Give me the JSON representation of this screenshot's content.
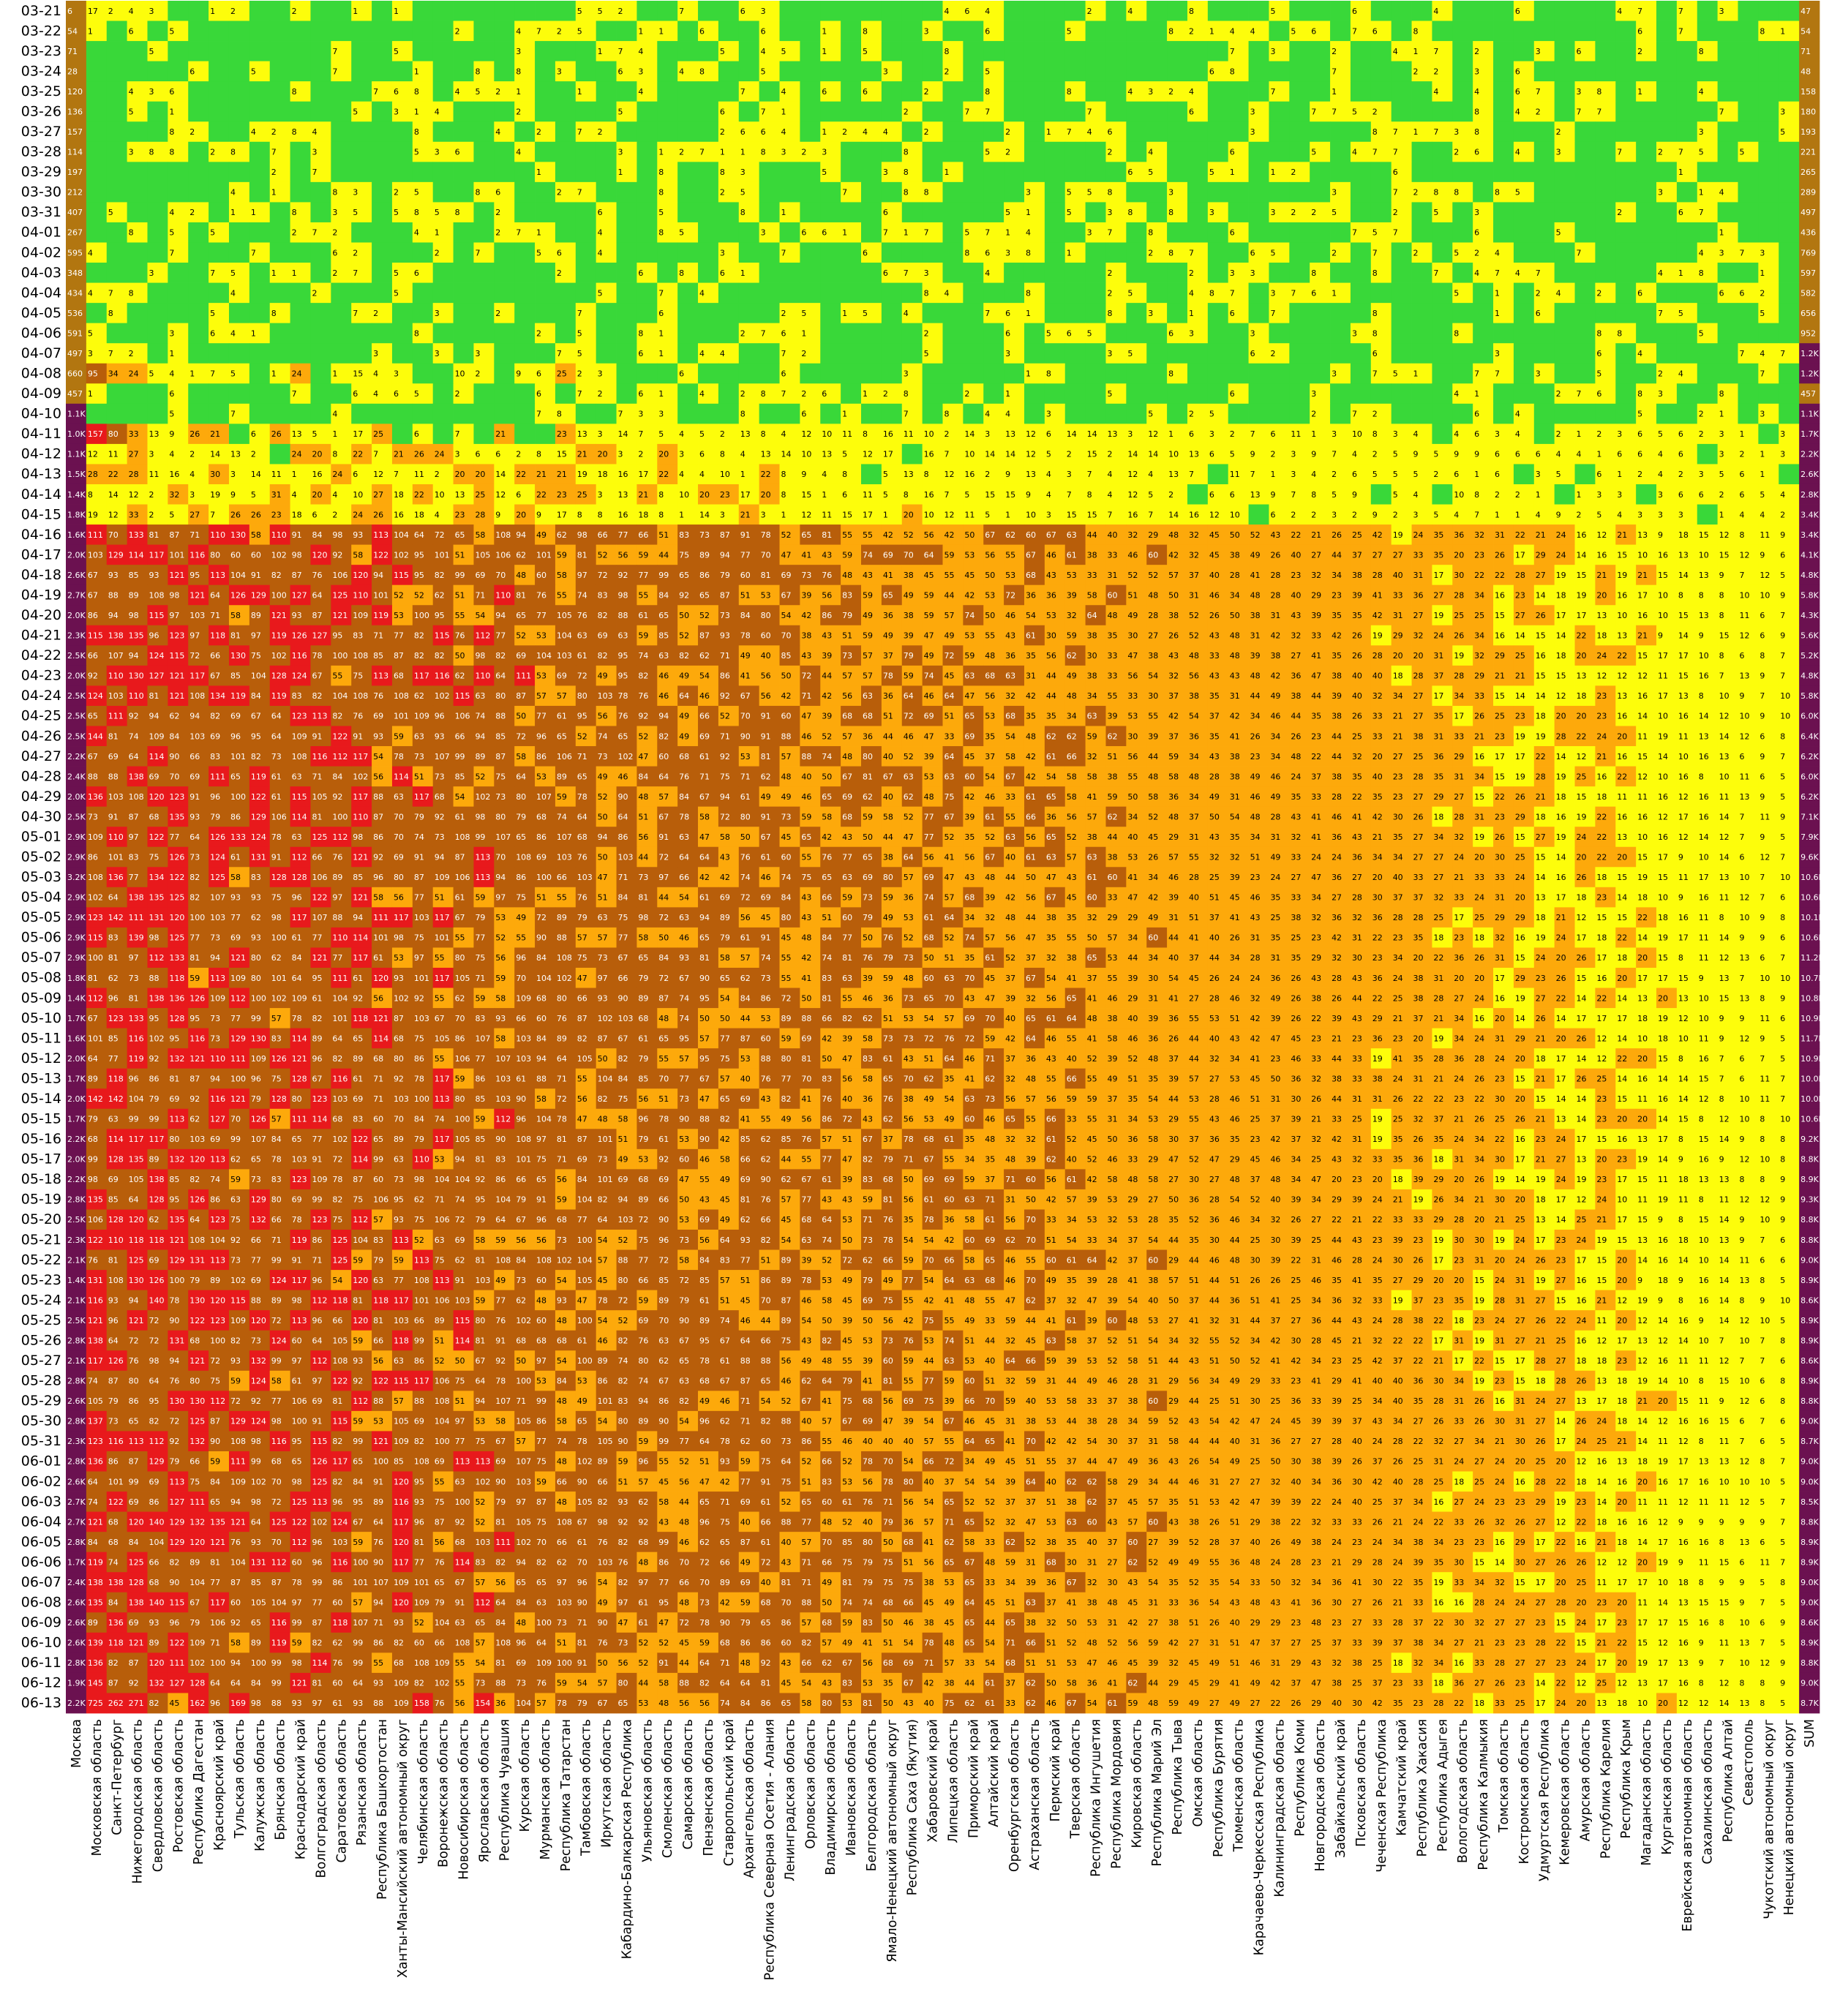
{
  "chart_data": {
    "type": "heatmap",
    "title": "",
    "xlabel": "",
    "ylabel": "",
    "color_scale": {
      "zero": "#39d839",
      "low": "#fdfd0b",
      "mid": "#fda90b",
      "high": "#b85e0a",
      "peak": "#e8191c",
      "sum_low": "#b27610",
      "sum_high": "#6b1150"
    },
    "rows": [
      "03-21",
      "03-22",
      "03-23",
      "03-24",
      "03-25",
      "03-26",
      "03-27",
      "03-28",
      "03-29",
      "03-30",
      "03-31",
      "04-01",
      "04-02",
      "04-03",
      "04-04",
      "04-05",
      "04-06",
      "04-07",
      "04-08",
      "04-09",
      "04-10",
      "04-11",
      "04-12",
      "04-13",
      "04-14",
      "04-15",
      "04-16",
      "04-17",
      "04-18",
      "04-19",
      "04-20",
      "04-21",
      "04-22",
      "04-23",
      "04-24",
      "04-25",
      "04-26",
      "04-27",
      "04-28",
      "04-29",
      "04-30",
      "05-01",
      "05-02",
      "05-03",
      "05-04",
      "05-05",
      "05-06",
      "05-07",
      "05-08",
      "05-09",
      "05-10",
      "05-11",
      "05-12",
      "05-13",
      "05-14",
      "05-15",
      "05-16",
      "05-17",
      "05-18",
      "05-19",
      "05-20",
      "05-21",
      "05-22",
      "05-23",
      "05-24",
      "05-25",
      "05-26",
      "05-27",
      "05-28",
      "05-29",
      "05-30",
      "05-31",
      "06-01",
      "06-02",
      "06-03",
      "06-04",
      "06-05",
      "06-06",
      "06-07",
      "06-08",
      "06-09",
      "06-10",
      "06-11",
      "06-12",
      "06-13"
    ],
    "columns": [
      "Москва",
      "Московская область",
      "Санкт-Петербург",
      "Нижегородская область",
      "Свердловская область",
      "Ростовская область",
      "Республика Дагестан",
      "Красноярский край",
      "Тульская область",
      "Калужская область",
      "Брянская область",
      "Краснодарский край",
      "Волгоградская область",
      "Саратовская область",
      "Рязанская область",
      "Республика Башкортостан",
      "Ханты-Мансийский автономный округ",
      "Челябинская область",
      "Воронежская область",
      "Новосибирская область",
      "Ярославская область",
      "Республика Чувашия",
      "Курская область",
      "Мурманская область",
      "Республика Татарстан",
      "Тамбовская область",
      "Иркутская область",
      "Кабардино-Балкарская Республика",
      "Ульяновская область",
      "Смоленская область",
      "Самарская область",
      "Пензенская область",
      "Ставропольский край",
      "Архангельская область",
      "Республика Северная Осетия - Алания",
      "Ленинградская область",
      "Орловская область",
      "Владимирская область",
      "Ивановская область",
      "Белгородская область",
      "Ямало-Ненецкий автономный округ",
      "Республика Саха (Якутия)",
      "Хабаровский край",
      "Липецкая область",
      "Приморский край",
      "Алтайский край",
      "Оренбургская область",
      "Астраханская область",
      "Пермский край",
      "Тверская область",
      "Республика Ингушетия",
      "Республика Мордовия",
      "Кировская область",
      "Республика Марий Эл",
      "Республика Тыва",
      "Омская область",
      "Республика Бурятия",
      "Тюменская область",
      "Карачаево-Черкесская Республика",
      "Калининградская область",
      "Республика Коми",
      "Новгородская область",
      "Забайкальский край",
      "Псковская область",
      "Чеченская Республика",
      "Камчатский край",
      "Республика Хакасия",
      "Республика Адыгея",
      "Вологодская область",
      "Республика Калмыкия",
      "Томская область",
      "Костромская область",
      "Удмуртская Республика",
      "Кемеровская область",
      "Амурская область",
      "Республика Карелия",
      "Республика Крым",
      "Магаданская область",
      "Курганская область",
      "Еврейская автономная область",
      "Сахалинская область",
      "Республика Алтай",
      "Севастополь",
      "Чукотский автономный округ",
      "Ненецкий автономный округ",
      "SUM"
    ],
    "sum_column": [
      "47",
      "54",
      "71",
      "48",
      "158",
      "180",
      "193",
      "221",
      "265",
      "289",
      "497",
      "436",
      "769",
      "597",
      "582",
      "656",
      "952",
      "1.2K",
      "1.2K",
      "457",
      "1.1K",
      "1.7K",
      "2.2K",
      "2.6K",
      "2.8K",
      "3.4K",
      "3.4K",
      "4.1K",
      "4.8K",
      "5.8K",
      "4.3K",
      "5.6K",
      "5.2K",
      "4.8K",
      "5.8K",
      "6.0K",
      "6.4K",
      "6.2K",
      "6.0K",
      "6.2K",
      "7.1K",
      "7.9K",
      "9.6K",
      "10.6K",
      "10.6K",
      "10.1K",
      "10.6K",
      "11.2K",
      "10.7K",
      "10.8K",
      "10.9K",
      "11.7K",
      "10.9K",
      "10.0K",
      "10.0K",
      "10.6K",
      "9.2K",
      "8.8K",
      "8.9K",
      "9.3K",
      "8.8K",
      "8.8K",
      "9.0K",
      "8.9K",
      "8.6K",
      "8.9K",
      "8.9K",
      "8.6K",
      "8.9K",
      "8.8K",
      "9.0K",
      "8.7K",
      "9.0K",
      "9.0K",
      "8.5K",
      "8.8K",
      "8.9K",
      "8.9K",
      "9.0K",
      "9.0K",
      "8.6K",
      "8.9K",
      "8.8K",
      "9.0K",
      "8.7K"
    ],
    "moscow_column": [
      "6",
      "54",
      "71",
      "28",
      "120",
      "136",
      "157",
      "114",
      "197",
      "212",
      "407",
      "267",
      "595",
      "348",
      "434",
      "536",
      "591",
      "497",
      "660",
      "457",
      "1.1K",
      "1.0K",
      "1.1K",
      "1.5K",
      "1.4K",
      "1.8K",
      "1.6K",
      "2.0K",
      "2.6K",
      "2.7K",
      "2.0K",
      "2.3K",
      "2.5K",
      "2.0K",
      "2.5K",
      "2.5K",
      "2.5K",
      "2.2K",
      "2.4K",
      "2.0K",
      "2.5K",
      "2.9K",
      "2.9K",
      "3.2K",
      "2.9K",
      "2.9K",
      "2.9K",
      "2.9K",
      "1.8K",
      "1.4K",
      "1.7K",
      "1.6K",
      "2.0K",
      "1.7K",
      "2.0K",
      "1.7K",
      "2.2K",
      "2.0K",
      "2.2K",
      "2.8K",
      "2.5K",
      "2.3K",
      "2.1K",
      "1.4K",
      "2.1K",
      "2.5K",
      "2.8K",
      "2.1K",
      "2.8K",
      "2.6K",
      "2.8K",
      "2.3K",
      "2.8K",
      "2.6K",
      "2.7K",
      "2.7K",
      "2.8K",
      "1.7K",
      "2.4K",
      "2.6K",
      "2.6K",
      "2.6K",
      "2.8K",
      "1.9K",
      "2.2K"
    ],
    "sample_rows": [
      {
        "row": "03-21",
        "values": [
          "6",
          "17",
          "2",
          "4",
          "3",
          "",
          "",
          "1",
          "2",
          "",
          "",
          "2",
          "",
          "",
          "1",
          "",
          "1",
          "",
          "",
          "",
          "",
          "",
          "",
          "",
          "",
          "5"
        ]
      },
      {
        "row": "04-08",
        "values": [
          "660",
          "95",
          "34",
          "24",
          "5",
          "4",
          "1",
          "7",
          "5",
          "",
          "1",
          "24",
          "",
          "1",
          "15",
          "4",
          "3",
          "",
          "",
          "10",
          "2",
          "",
          "9",
          "6",
          "25"
        ]
      },
      {
        "row": "04-11",
        "values": [
          "1.0K",
          "157",
          "80",
          "33",
          "13",
          "9",
          "26",
          "21",
          "",
          "6",
          "26",
          "13",
          "5",
          "1",
          "17",
          "25",
          "",
          "6",
          "",
          "7",
          "",
          "21",
          "",
          "",
          "23"
        ]
      },
      {
        "row": "06-13",
        "values": [
          "2.2K",
          "725",
          "262",
          "271",
          "82",
          "45",
          "162",
          "96",
          "169",
          "98",
          "88",
          "93",
          "97",
          "61",
          "93",
          "88",
          "109",
          "158",
          "76",
          "56",
          "154",
          "36",
          "104",
          "57",
          "78"
        ]
      }
    ]
  }
}
